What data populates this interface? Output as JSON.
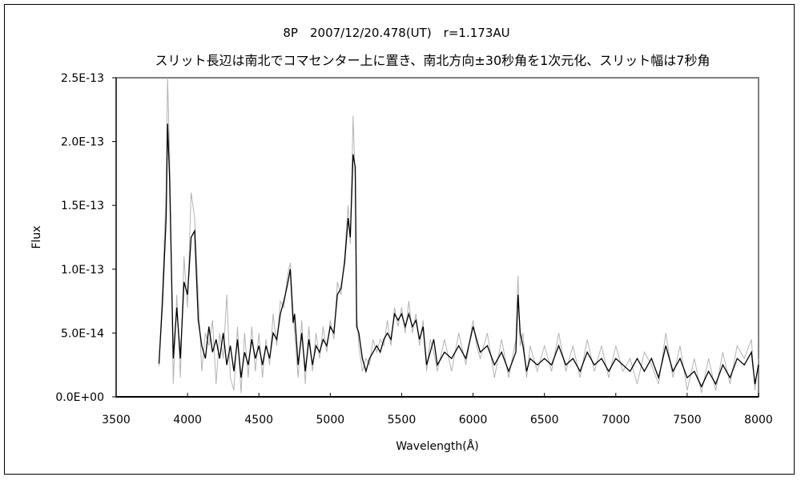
{
  "chart_data": {
    "type": "line",
    "title": "8P　2007/12/20.478(UT)　r=1.173AU",
    "subtitle": "スリット長辺は南北でコマセンター上に置き、南北方向±30秒角を1次元化、スリット幅は7秒角",
    "xlabel": "Wavelength(Å)",
    "ylabel": "Flux",
    "xlim": [
      3500,
      8000
    ],
    "ylim": [
      0,
      2.5e-13
    ],
    "x_ticks": [
      "3500",
      "4000",
      "4500",
      "5000",
      "5500",
      "6000",
      "6500",
      "7000",
      "7500",
      "8000"
    ],
    "y_ticks": [
      "0.0E+00",
      "5.0E-14",
      "1.0E-13",
      "1.5E-13",
      "2.0E-13",
      "2.5E-13"
    ],
    "grid": false,
    "legend": "none",
    "x": [
      3800,
      3825,
      3850,
      3860,
      3875,
      3900,
      3925,
      3950,
      3975,
      4000,
      4025,
      4050,
      4075,
      4100,
      4125,
      4150,
      4175,
      4200,
      4225,
      4250,
      4275,
      4300,
      4325,
      4350,
      4375,
      4400,
      4425,
      4450,
      4475,
      4500,
      4525,
      4550,
      4575,
      4600,
      4625,
      4650,
      4675,
      4700,
      4720,
      4740,
      4750,
      4775,
      4800,
      4825,
      4850,
      4875,
      4900,
      4925,
      4950,
      4975,
      5000,
      5025,
      5050,
      5075,
      5100,
      5125,
      5140,
      5160,
      5175,
      5185,
      5200,
      5225,
      5250,
      5275,
      5300,
      5325,
      5350,
      5375,
      5400,
      5425,
      5450,
      5475,
      5500,
      5525,
      5550,
      5575,
      5600,
      5625,
      5650,
      5675,
      5700,
      5725,
      5750,
      5800,
      5850,
      5900,
      5950,
      6000,
      6025,
      6050,
      6100,
      6150,
      6200,
      6250,
      6300,
      6315,
      6330,
      6350,
      6375,
      6400,
      6450,
      6500,
      6550,
      6600,
      6650,
      6700,
      6750,
      6800,
      6850,
      6900,
      6950,
      7000,
      7050,
      7100,
      7150,
      7200,
      7250,
      7300,
      7350,
      7400,
      7450,
      7500,
      7550,
      7600,
      7650,
      7700,
      7750,
      7800,
      7850,
      7900,
      7950,
      7975,
      8000
    ],
    "series": [
      {
        "color": "#b4b4b4",
        "values": [
          2.4e-14,
          8.5e-14,
          1.6e-13,
          2.5e-13,
          1.9e-13,
          1e-14,
          8e-14,
          1.5e-14,
          1.1e-13,
          7e-14,
          1.6e-13,
          1.4e-13,
          8e-14,
          2e-14,
          5e-14,
          4e-14,
          6e-14,
          1e-14,
          5e-14,
          3e-14,
          8e-14,
          1.5e-14,
          5e-15,
          5.5e-14,
          3e-15,
          5e-14,
          1.5e-14,
          5.5e-14,
          2e-14,
          5e-14,
          1.5e-14,
          4.5e-14,
          2.5e-14,
          6.5e-14,
          4e-14,
          7.5e-14,
          7e-14,
          9.5e-14,
          1.05e-13,
          6.5e-14,
          5e-14,
          1.5e-14,
          6e-14,
          1e-14,
          5.5e-14,
          2e-14,
          5e-14,
          3e-14,
          5.5e-14,
          3.5e-14,
          6e-14,
          4.5e-14,
          9e-14,
          8e-14,
          1.1e-13,
          1.5e-13,
          1.2e-13,
          2.2e-13,
          1.7e-13,
          6.5e-14,
          4e-14,
          2e-14,
          3e-14,
          2.5e-14,
          4.5e-14,
          3.5e-14,
          4.5e-14,
          4e-14,
          6e-14,
          4e-14,
          7e-14,
          5.5e-14,
          7e-14,
          5e-14,
          7.5e-14,
          5e-14,
          6.5e-14,
          4e-14,
          6e-14,
          2e-14,
          4.5e-14,
          3.5e-14,
          2e-14,
          4.5e-14,
          2e-14,
          5e-14,
          2.5e-14,
          6e-14,
          4e-14,
          3e-14,
          5e-14,
          1.5e-14,
          4.5e-14,
          1.5e-14,
          4.5e-14,
          9.5e-14,
          4e-14,
          5e-14,
          1.5e-14,
          4e-14,
          2e-14,
          4e-14,
          2e-14,
          5e-14,
          2e-14,
          4e-14,
          1.5e-14,
          4.5e-14,
          2e-14,
          4e-14,
          1.5e-14,
          4e-14,
          2e-14,
          3e-14,
          1e-14,
          3.5e-14,
          2.5e-14,
          1e-14,
          5e-14,
          1.5e-14,
          4e-14,
          5e-15,
          3e-14,
          3e-15,
          3e-14,
          5e-15,
          3.5e-14,
          1e-14,
          4e-14,
          3e-14,
          4.5e-14,
          5e-15,
          3e-14
        ]
      },
      {
        "color": "#000000",
        "values": [
          2.6e-14,
          7.5e-14,
          1.4e-13,
          2.14e-13,
          1.7e-13,
          3e-14,
          7e-14,
          3e-14,
          9e-14,
          8e-14,
          1.25e-13,
          1.3e-13,
          6e-14,
          4e-14,
          3e-14,
          5.5e-14,
          3.5e-14,
          4.5e-14,
          3e-14,
          5e-14,
          2.5e-14,
          4e-14,
          2e-14,
          4.5e-14,
          1.5e-14,
          3.5e-14,
          2.5e-14,
          4.5e-14,
          3e-14,
          4e-14,
          2.5e-14,
          4e-14,
          3e-14,
          5e-14,
          4.5e-14,
          6.5e-14,
          7.5e-14,
          8.8e-14,
          1e-13,
          5.8e-14,
          6.5e-14,
          2.5e-14,
          5e-14,
          2e-14,
          4.5e-14,
          2.5e-14,
          4e-14,
          3.5e-14,
          4.5e-14,
          4e-14,
          5.5e-14,
          5e-14,
          8e-14,
          8.5e-14,
          1.05e-13,
          1.4e-13,
          1.25e-13,
          1.9e-13,
          1.8e-13,
          5.5e-14,
          5e-14,
          3e-14,
          2e-14,
          3e-14,
          3.5e-14,
          4e-14,
          3.5e-14,
          4.5e-14,
          5e-14,
          4.5e-14,
          6.5e-14,
          6e-14,
          6.5e-14,
          5.5e-14,
          6.5e-14,
          5.5e-14,
          6e-14,
          4.5e-14,
          5.5e-14,
          2.5e-14,
          3.5e-14,
          4.5e-14,
          2.5e-14,
          3.5e-14,
          3e-14,
          4e-14,
          3e-14,
          5.5e-14,
          4.5e-14,
          3.5e-14,
          4e-14,
          2.5e-14,
          3.5e-14,
          2e-14,
          3.5e-14,
          8e-14,
          5e-14,
          4e-14,
          2e-14,
          3e-14,
          2.5e-14,
          3e-14,
          2.5e-14,
          4e-14,
          2.5e-14,
          3e-14,
          2e-14,
          3.5e-14,
          2.5e-14,
          3e-14,
          2e-14,
          3e-14,
          2.5e-14,
          2e-14,
          3e-14,
          2e-14,
          3e-14,
          1.5e-14,
          4e-14,
          2e-14,
          3e-14,
          1.5e-14,
          2e-14,
          8e-15,
          2e-14,
          1e-14,
          2.5e-14,
          1.5e-14,
          3e-14,
          2.5e-14,
          3.5e-14,
          1e-14,
          2.5e-14
        ]
      }
    ]
  }
}
